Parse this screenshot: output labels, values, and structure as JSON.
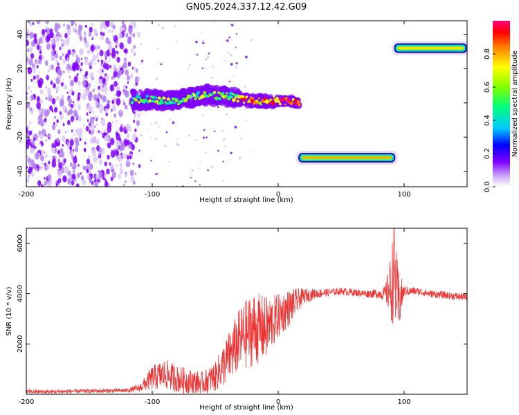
{
  "title": "GN05.2024.337.12.42.G09",
  "chart_data": [
    {
      "type": "heatmap",
      "xlabel": "Height of straight line (km)",
      "ylabel": "Frequency (Hz)",
      "xlim": [
        -200,
        150
      ],
      "ylim": [
        -49,
        48
      ],
      "xticks": [
        -200,
        -100,
        0,
        100
      ],
      "yticks": [
        40,
        20,
        0,
        -20,
        -40
      ],
      "colorbar": {
        "label": "Normalized spectral amplitude",
        "range": [
          0,
          1
        ],
        "ticks": [
          "0.0",
          "0.2",
          "0.4",
          "0.6",
          "0.8"
        ],
        "colors": [
          "#ffffff",
          "#c8a0f0",
          "#8000ff",
          "#0000ff",
          "#00c8ff",
          "#00ff80",
          "#80ff00",
          "#ffff00",
          "#ff8000",
          "#ff0000",
          "#ff0080"
        ]
      },
      "features": [
        {
          "name": "noise",
          "x_range": [
            -200,
            -112
          ],
          "freq_range": [
            -49,
            48
          ]
        },
        {
          "name": "main trace",
          "points": [
            [
              -116,
              2
            ],
            [
              -100,
              2
            ],
            [
              -80,
              1
            ],
            [
              -60,
              5
            ],
            [
              -40,
              4
            ],
            [
              -20,
              1
            ],
            [
              0,
              1
            ],
            [
              10,
              1
            ],
            [
              17,
              0
            ]
          ]
        },
        {
          "name": "lower alias",
          "x_range": [
            16,
            93
          ],
          "freq": -32
        },
        {
          "name": "upper alias",
          "x_range": [
            92,
            150
          ],
          "freq": 32
        }
      ]
    },
    {
      "type": "line",
      "xlabel": "Height of straight line (km)",
      "ylabel": "SNR (10 * v/v)",
      "xlim": [
        -200,
        150
      ],
      "ylim": [
        0,
        6600
      ],
      "xticks": [
        -200,
        -100,
        0,
        100
      ],
      "yticks": [
        2000,
        4000,
        6000
      ],
      "series": [
        {
          "color": "#ee3333",
          "x": [
            -200,
            -180,
            -160,
            -140,
            -120,
            -110,
            -100,
            -90,
            -80,
            -70,
            -60,
            -50,
            -40,
            -30,
            -20,
            -10,
            0,
            10,
            20,
            30,
            40,
            50,
            60,
            70,
            80,
            85,
            90,
            92,
            95,
            100,
            110,
            120,
            130,
            140,
            150
          ],
          "y": [
            100,
            100,
            120,
            130,
            150,
            250,
            650,
            800,
            600,
            500,
            450,
            700,
            1400,
            2200,
            2600,
            2600,
            3100,
            3500,
            3900,
            4000,
            4050,
            4100,
            4050,
            4000,
            4000,
            4000,
            4300,
            5000,
            3600,
            4100,
            4100,
            4000,
            3950,
            3900,
            3850
          ],
          "spread": [
            80,
            80,
            80,
            80,
            80,
            150,
            500,
            600,
            550,
            500,
            450,
            600,
            1000,
            1300,
            1500,
            1300,
            900,
            700,
            300,
            200,
            150,
            150,
            150,
            150,
            200,
            300,
            1500,
            2200,
            1500,
            200,
            150,
            150,
            150,
            150,
            150
          ]
        }
      ]
    }
  ]
}
